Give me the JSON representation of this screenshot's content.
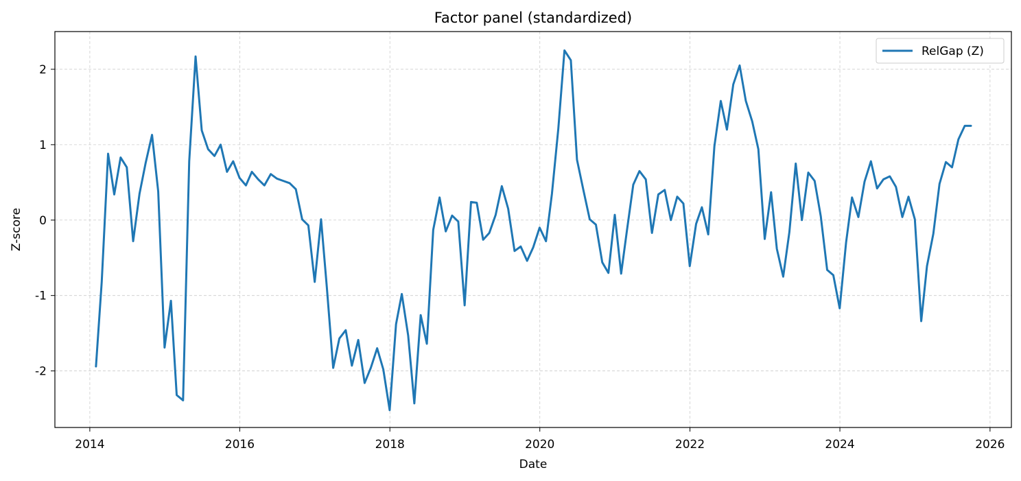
{
  "chart_data": {
    "type": "line",
    "title": "Factor panel (standardized)",
    "xlabel": "Date",
    "ylabel": "Z-score",
    "x_axis_type": "date",
    "xlim": [
      "2013-07-15",
      "2026-04-15"
    ],
    "ylim": [
      -2.75,
      2.5
    ],
    "x_ticks": [
      "2014",
      "2016",
      "2018",
      "2020",
      "2022",
      "2024",
      "2026"
    ],
    "y_ticks": [
      -2,
      -1,
      0,
      1,
      2
    ],
    "y_tick_labels": [
      "-2",
      "-1",
      "0",
      "1",
      "2"
    ],
    "grid": true,
    "legend_position": "top-right",
    "colors": {
      "series": "#1f77b4",
      "grid": "#cccccc",
      "axis": "#000000"
    },
    "series": [
      {
        "name": "RelGap (Z)",
        "x": [
          "2014-01-31",
          "2014-02-28",
          "2014-03-31",
          "2014-04-30",
          "2014-05-31",
          "2014-06-30",
          "2014-07-31",
          "2014-08-31",
          "2014-09-30",
          "2014-10-31",
          "2014-11-30",
          "2014-12-31",
          "2015-01-31",
          "2015-02-28",
          "2015-03-31",
          "2015-04-30",
          "2015-05-31",
          "2015-06-30",
          "2015-07-31",
          "2015-08-31",
          "2015-09-30",
          "2015-10-31",
          "2015-11-30",
          "2015-12-31",
          "2016-01-31",
          "2016-02-29",
          "2016-03-31",
          "2016-04-30",
          "2016-05-31",
          "2016-06-30",
          "2016-07-31",
          "2016-08-31",
          "2016-09-30",
          "2016-10-31",
          "2016-11-30",
          "2016-12-31",
          "2017-01-31",
          "2017-02-28",
          "2017-03-31",
          "2017-04-30",
          "2017-05-31",
          "2017-06-30",
          "2017-07-31",
          "2017-08-31",
          "2017-09-30",
          "2017-10-31",
          "2017-11-30",
          "2017-12-31",
          "2018-01-31",
          "2018-02-28",
          "2018-03-31",
          "2018-04-30",
          "2018-05-31",
          "2018-06-30",
          "2018-07-31",
          "2018-08-31",
          "2018-09-30",
          "2018-10-31",
          "2018-11-30",
          "2018-12-31",
          "2019-01-31",
          "2019-02-28",
          "2019-03-31",
          "2019-04-30",
          "2019-05-31",
          "2019-06-30",
          "2019-07-31",
          "2019-08-31",
          "2019-09-30",
          "2019-10-31",
          "2019-11-30",
          "2019-12-31",
          "2020-01-31",
          "2020-02-29",
          "2020-03-31",
          "2020-04-30",
          "2020-05-31",
          "2020-06-30",
          "2020-07-31",
          "2020-08-31",
          "2020-09-30",
          "2020-10-31",
          "2020-11-30",
          "2020-12-31",
          "2021-01-31",
          "2021-02-28",
          "2021-03-31",
          "2021-04-30",
          "2021-05-31",
          "2021-06-30",
          "2021-07-31",
          "2021-08-31",
          "2021-09-30",
          "2021-10-31",
          "2021-11-30",
          "2021-12-31",
          "2022-01-31",
          "2022-02-28",
          "2022-03-31",
          "2022-04-30",
          "2022-05-31",
          "2022-06-30",
          "2022-07-31",
          "2022-08-31",
          "2022-09-30",
          "2022-10-31",
          "2022-11-30",
          "2022-12-31",
          "2023-01-31",
          "2023-02-28",
          "2023-03-31",
          "2023-04-30",
          "2023-05-31",
          "2023-06-30",
          "2023-07-31",
          "2023-08-31",
          "2023-09-30",
          "2023-10-31",
          "2023-11-30",
          "2023-12-31",
          "2024-01-31",
          "2024-02-29",
          "2024-03-31",
          "2024-04-30",
          "2024-05-31",
          "2024-06-30",
          "2024-07-31",
          "2024-08-31",
          "2024-09-30",
          "2024-10-31",
          "2024-11-30",
          "2024-12-31",
          "2025-01-31",
          "2025-02-28",
          "2025-03-31",
          "2025-04-30",
          "2025-05-31",
          "2025-06-30",
          "2025-07-31",
          "2025-08-31",
          "2025-09-30"
        ],
        "values": [
          -1.94,
          -0.82,
          0.88,
          0.34,
          0.83,
          0.7,
          -0.28,
          0.35,
          0.76,
          1.13,
          0.38,
          -1.69,
          -1.07,
          -2.32,
          -2.39,
          0.78,
          2.17,
          1.19,
          0.94,
          0.85,
          1.0,
          0.64,
          0.78,
          0.56,
          0.46,
          0.64,
          0.54,
          0.46,
          0.61,
          0.55,
          0.52,
          0.49,
          0.41,
          0.01,
          -0.07,
          -0.82,
          0.01,
          -0.89,
          -1.96,
          -1.57,
          -1.46,
          -1.93,
          -1.59,
          -2.16,
          -1.96,
          -1.7,
          -1.98,
          -2.52,
          -1.38,
          -0.98,
          -1.53,
          -2.43,
          -1.26,
          -1.64,
          -0.13,
          0.3,
          -0.15,
          0.06,
          -0.02,
          -1.13,
          0.24,
          0.23,
          -0.26,
          -0.17,
          0.07,
          0.45,
          0.15,
          -0.41,
          -0.35,
          -0.54,
          -0.36,
          -0.1,
          -0.28,
          0.35,
          1.21,
          2.25,
          2.12,
          0.8,
          0.4,
          0.01,
          -0.06,
          -0.56,
          -0.7,
          0.07,
          -0.71,
          -0.14,
          0.47,
          0.65,
          0.54,
          -0.17,
          0.34,
          0.4,
          0.0,
          0.31,
          0.22,
          -0.61,
          -0.05,
          0.17,
          -0.19,
          0.98,
          1.58,
          1.2,
          1.8,
          2.05,
          1.58,
          1.31,
          0.94,
          -0.25,
          0.37,
          -0.38,
          -0.75,
          -0.16,
          0.75,
          0.0,
          0.63,
          0.52,
          0.05,
          -0.66,
          -0.73,
          -1.17,
          -0.3,
          0.3,
          0.04,
          0.51,
          0.78,
          0.42,
          0.54,
          0.58,
          0.44,
          0.04,
          0.31,
          0.01,
          -1.34,
          -0.61,
          -0.18,
          0.48,
          0.77,
          0.7,
          1.07,
          1.25,
          1.25
        ]
      }
    ]
  }
}
